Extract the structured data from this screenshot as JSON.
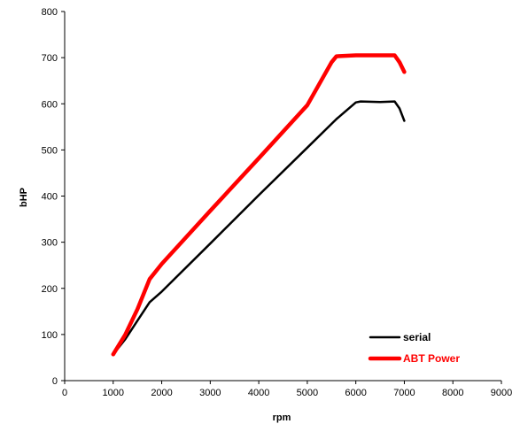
{
  "chart_data": {
    "type": "line",
    "xlabel": "rpm",
    "ylabel": "bHP",
    "xlim": [
      0,
      9000
    ],
    "ylim": [
      0,
      800
    ],
    "x_ticks": [
      0,
      1000,
      2000,
      3000,
      4000,
      5000,
      6000,
      7000,
      8000,
      9000
    ],
    "y_ticks": [
      0,
      100,
      200,
      300,
      400,
      500,
      600,
      700,
      800
    ],
    "grid": false,
    "legend_position": "bottom-right",
    "series": [
      {
        "name": "serial",
        "color": "#000000",
        "x": [
          1000,
          1250,
          1500,
          1750,
          2000,
          3000,
          4000,
          5000,
          5600,
          6000,
          6100,
          6500,
          6800,
          6900,
          7000
        ],
        "y": [
          57,
          90,
          130,
          170,
          193,
          297,
          402,
          505,
          567,
          603,
          605,
          604,
          605,
          590,
          563
        ]
      },
      {
        "name": "ABT Power",
        "color": "#ff0000",
        "x": [
          1000,
          1250,
          1500,
          1750,
          2000,
          3000,
          4000,
          5000,
          5500,
          5600,
          6000,
          6500,
          6800,
          6900,
          7000
        ],
        "y": [
          57,
          100,
          155,
          220,
          253,
          368,
          482,
          597,
          690,
          703,
          705,
          705,
          705,
          690,
          669
        ]
      }
    ]
  }
}
